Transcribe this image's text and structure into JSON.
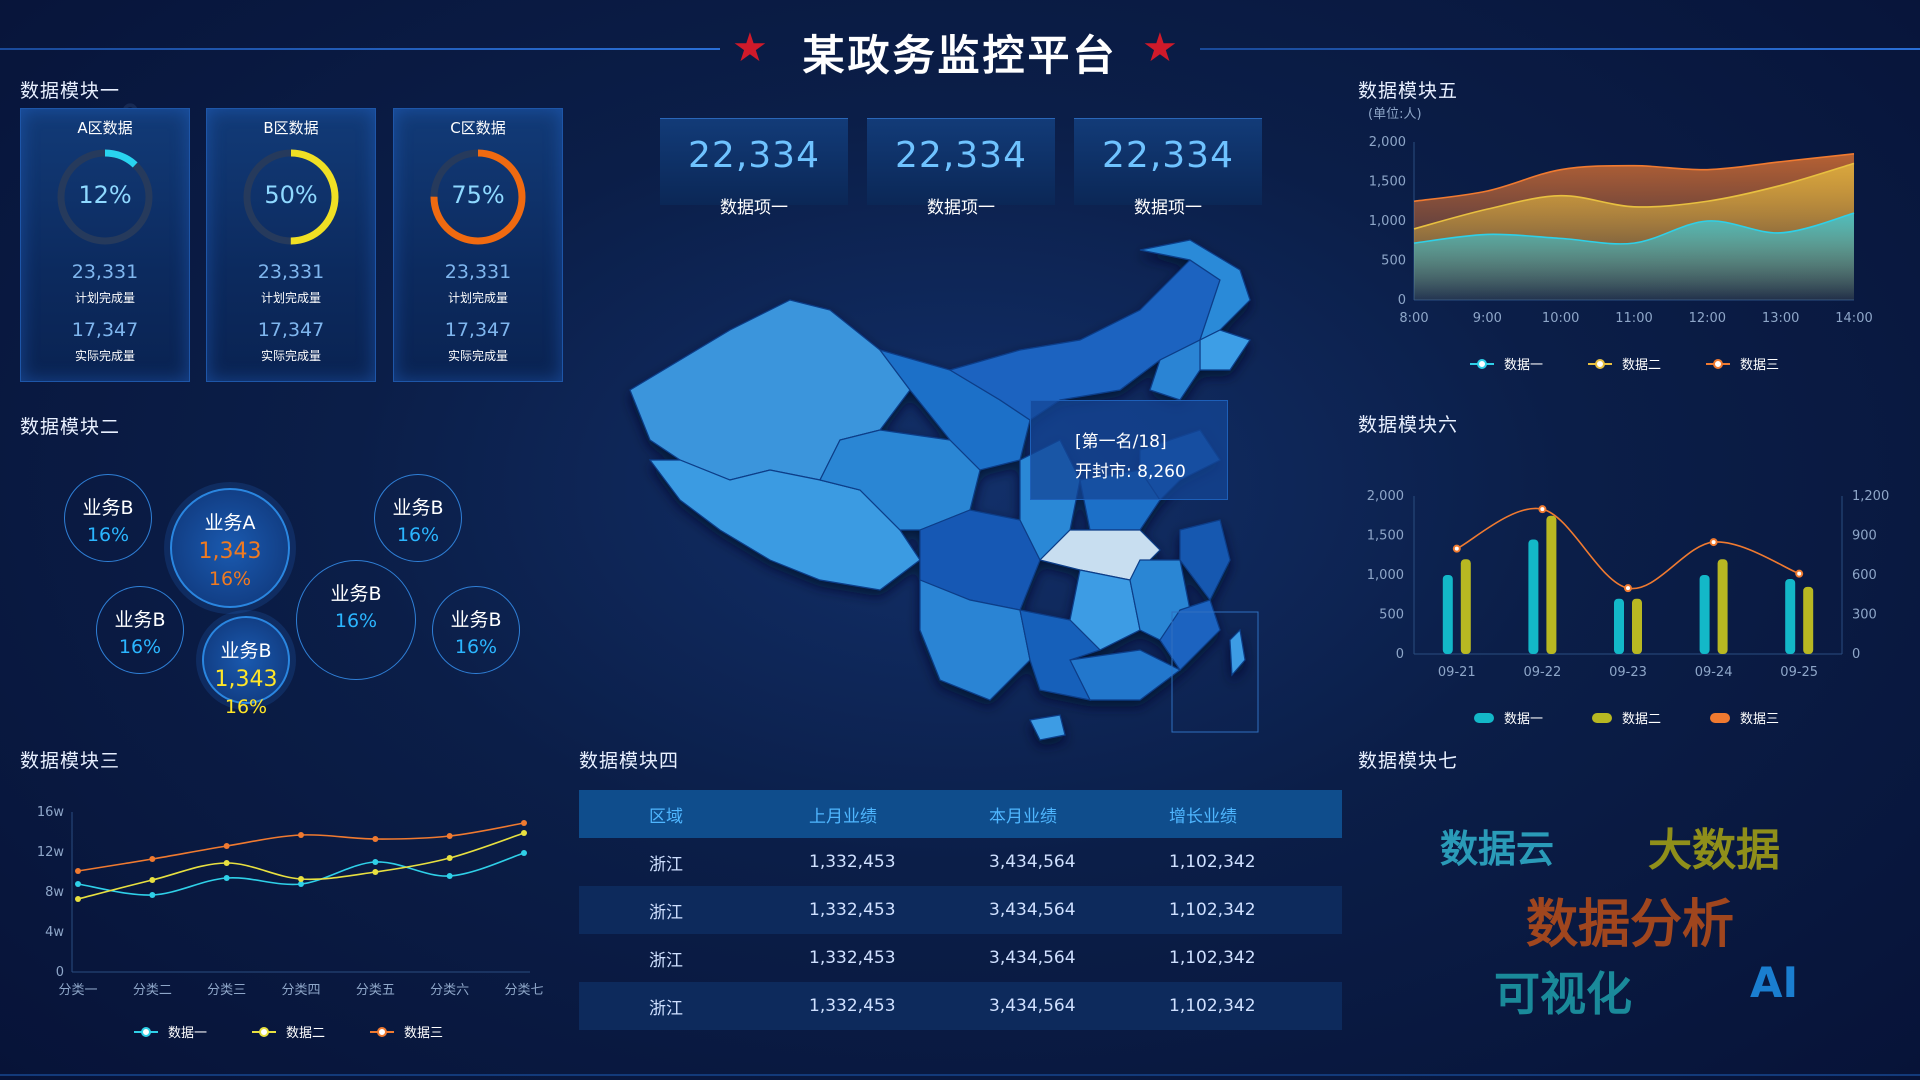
{
  "header": {
    "title": "某政务监控平台"
  },
  "module1": {
    "title": "数据模块一",
    "cards": [
      {
        "title": "A区数据",
        "pct": "12%",
        "pct_value": 0.12,
        "color": "#29d4f0",
        "plan": "23,331",
        "plan_label": "计划完成量",
        "actual": "17,347",
        "actual_label": "实际完成量"
      },
      {
        "title": "B区数据",
        "pct": "50%",
        "pct_value": 0.5,
        "color": "#f0e024",
        "plan": "23,331",
        "plan_label": "计划完成量",
        "actual": "17,347",
        "actual_label": "实际完成量"
      },
      {
        "title": "C区数据",
        "pct": "75%",
        "pct_value": 0.75,
        "color": "#f06a10",
        "plan": "23,331",
        "plan_label": "计划完成量",
        "actual": "17,347",
        "actual_label": "实际完成量"
      }
    ]
  },
  "module2": {
    "title": "数据模块二",
    "bubbles": [
      {
        "label": "业务B",
        "pct": "16%"
      },
      {
        "label": "业务A",
        "value": "1,343",
        "pct": "16%",
        "value_color": "#f07a20"
      },
      {
        "label": "业务B",
        "pct": "16%"
      },
      {
        "label": "业务B",
        "pct": "16%"
      },
      {
        "label": "业务B",
        "pct": "16%"
      },
      {
        "label": "业务B",
        "value": "1,343",
        "pct": "16%",
        "value_color": "#ffe628"
      },
      {
        "label": "业务B",
        "pct": "16%"
      }
    ]
  },
  "module3": {
    "title": "数据模块三"
  },
  "module4": {
    "title": "数据模块四",
    "columns": [
      "区域",
      "上月业绩",
      "本月业绩",
      "增长业绩"
    ],
    "rows": [
      [
        "浙江",
        "1,332,453",
        "3,434,564",
        "1,102,342"
      ],
      [
        "浙江",
        "1,332,453",
        "3,434,564",
        "1,102,342"
      ],
      [
        "浙江",
        "1,332,453",
        "3,434,564",
        "1,102,342"
      ],
      [
        "浙江",
        "1,332,453",
        "3,434,564",
        "1,102,342"
      ]
    ]
  },
  "module5": {
    "title": "数据模块五"
  },
  "module6": {
    "title": "数据模块六"
  },
  "module7": {
    "title": "数据模块七",
    "words": [
      {
        "text": "数据云",
        "color": "#2a9bb8"
      },
      {
        "text": "大数据",
        "color": "#8f8f1a"
      },
      {
        "text": "数据分析",
        "color": "#a0461e"
      },
      {
        "text": "可视化",
        "color": "#1a8a9a"
      },
      {
        "text": "AI",
        "color": "#1a7ed0"
      }
    ]
  },
  "kpis": [
    {
      "value": "22,334",
      "label": "数据项一"
    },
    {
      "value": "22,334",
      "label": "数据项一"
    },
    {
      "value": "22,334",
      "label": "数据项一"
    }
  ],
  "map": {
    "tooltip_line1": "[第一名/18]",
    "tooltip_line2": "开封市: 8,260"
  },
  "chart_data": [
    {
      "type": "line",
      "x": [
        "分类一",
        "分类二",
        "分类三",
        "分类四",
        "分类五",
        "分类六",
        "分类七"
      ],
      "yticks": [
        "0",
        "4w",
        "8w",
        "12w",
        "16w"
      ],
      "ylim": [
        0,
        16
      ],
      "series": [
        {
          "name": "数据一",
          "color": "#2fd0e8",
          "values": [
            8.8,
            7.7,
            9.4,
            8.8,
            11.0,
            9.6,
            11.9
          ]
        },
        {
          "name": "数据二",
          "color": "#e8e040",
          "values": [
            7.3,
            9.2,
            10.9,
            9.3,
            10.0,
            11.4,
            13.9
          ]
        },
        {
          "name": "数据三",
          "color": "#f07a30",
          "values": [
            10.1,
            11.3,
            12.6,
            13.7,
            13.3,
            13.6,
            14.9
          ]
        }
      ],
      "legend": "bottom"
    },
    {
      "type": "area",
      "unit": "(单位:人)",
      "x": [
        "8:00",
        "9:00",
        "10:00",
        "11:00",
        "12:00",
        "13:00",
        "14:00"
      ],
      "yticks": [
        "0",
        "500",
        "1,000",
        "1,500",
        "2,000"
      ],
      "ylim": [
        0,
        2000
      ],
      "series": [
        {
          "name": "数据一",
          "color": "#2fd0e8",
          "values": [
            720,
            830,
            780,
            720,
            1000,
            850,
            1100
          ]
        },
        {
          "name": "数据二",
          "color": "#e8c040",
          "values": [
            900,
            1150,
            1320,
            1180,
            1250,
            1450,
            1730
          ]
        },
        {
          "name": "数据三",
          "color": "#f07a30",
          "values": [
            1250,
            1380,
            1650,
            1700,
            1650,
            1750,
            1850
          ]
        }
      ],
      "legend": "bottom"
    },
    {
      "type": "bar",
      "categories": [
        "09-21",
        "09-22",
        "09-23",
        "09-24",
        "09-25"
      ],
      "yticks_left": [
        "0",
        "500",
        "1,000",
        "1,500",
        "2,000"
      ],
      "yticks_right": [
        "0",
        "300",
        "600",
        "900",
        "1,200"
      ],
      "ylim_left": [
        0,
        2000
      ],
      "ylim_right": [
        0,
        1200
      ],
      "series": [
        {
          "name": "数据一",
          "color": "#13b8c8",
          "values": [
            1000,
            1450,
            700,
            1000,
            950
          ]
        },
        {
          "name": "数据二",
          "color": "#b8b822",
          "values": [
            1200,
            1750,
            700,
            1200,
            850
          ]
        },
        {
          "name": "数据三",
          "color": "#f07a30",
          "axis": "right",
          "values": [
            800,
            1100,
            500,
            850,
            610
          ]
        }
      ],
      "legend": "bottom"
    }
  ]
}
